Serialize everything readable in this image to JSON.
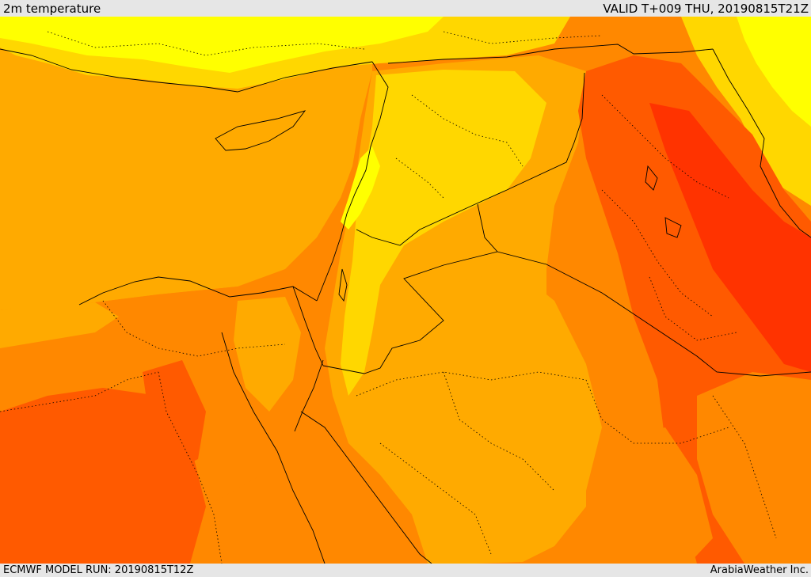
{
  "header": {
    "title": "2m temperature",
    "valid_time": "VALID T+009 THU, 20190815T21Z"
  },
  "footer": {
    "model_run": "ECMWF MODEL RUN: 20190815T12Z",
    "credit": "ArabiaWeather Inc."
  },
  "map": {
    "palette": {
      "coolest": "#ffff00",
      "cool": "#ffd700",
      "mild": "#ffaa00",
      "warm": "#ff8800",
      "hot": "#ff5a00",
      "hottest": "#ff3300",
      "boundary": "#000000"
    }
  }
}
